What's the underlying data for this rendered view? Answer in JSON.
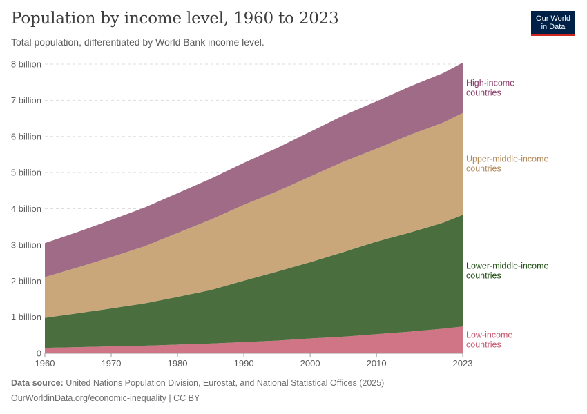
{
  "header": {
    "title": "Population by income level, 1960 to 2023",
    "subtitle": "Total population, differentiated by World Bank income level.",
    "logo_line1": "Our World",
    "logo_line2": "in Data"
  },
  "footer": {
    "source_label": "Data source:",
    "source_text": "United Nations Population Division, Eurostat, and National Statistical Offices (2025)",
    "url_text": "OurWorldinData.org/economic-inequality | CC BY"
  },
  "colors": {
    "low": "#d07585",
    "lower_middle": "#4a6e3d",
    "upper_middle": "#c9a77b",
    "high": "#9f6b87",
    "label_low": "#c6586f",
    "label_lower_middle": "#1f4d13",
    "label_upper_middle": "#b28a5a",
    "label_high": "#883b6a",
    "brand": "#002147",
    "brand_accent": "#ce261e"
  },
  "chart_data": {
    "type": "area",
    "stacked": true,
    "x": [
      1960,
      1965,
      1970,
      1975,
      1980,
      1985,
      1990,
      1995,
      2000,
      2005,
      2010,
      2015,
      2020,
      2023
    ],
    "x_ticks": [
      1960,
      1970,
      1980,
      1990,
      2000,
      2010,
      2023
    ],
    "y_ticks": [
      0,
      1,
      2,
      3,
      4,
      5,
      6,
      7,
      8
    ],
    "y_tick_labels": [
      "0",
      "1 billion",
      "2 billion",
      "3 billion",
      "4 billion",
      "5 billion",
      "6 billion",
      "7 billion",
      "8 billion"
    ],
    "ylim": [
      0,
      8
    ],
    "grid": true,
    "legend": "right-inline",
    "series": [
      {
        "name": "Low-income countries",
        "label_lines": [
          "Low-income",
          "countries"
        ],
        "color_key": "low",
        "label_color_key": "label_low",
        "values": [
          0.15,
          0.17,
          0.19,
          0.21,
          0.24,
          0.27,
          0.31,
          0.35,
          0.41,
          0.46,
          0.53,
          0.6,
          0.68,
          0.74
        ]
      },
      {
        "name": "Lower-middle-income countries",
        "label_lines": [
          "Lower-middle-income",
          "countries"
        ],
        "color_key": "lower_middle",
        "label_color_key": "label_lower_middle",
        "values": [
          0.83,
          0.94,
          1.05,
          1.17,
          1.32,
          1.48,
          1.7,
          1.91,
          2.11,
          2.34,
          2.56,
          2.74,
          2.93,
          3.09
        ]
      },
      {
        "name": "Upper-middle-income countries",
        "label_lines": [
          "Upper-middle-income",
          "countries"
        ],
        "color_key": "upper_middle",
        "label_color_key": "label_upper_middle",
        "values": [
          1.13,
          1.27,
          1.42,
          1.58,
          1.77,
          1.95,
          2.1,
          2.22,
          2.37,
          2.5,
          2.57,
          2.7,
          2.77,
          2.82
        ]
      },
      {
        "name": "High-income countries",
        "label_lines": [
          "High-income",
          "countries"
        ],
        "color_key": "high",
        "label_color_key": "label_high",
        "values": [
          0.94,
          0.98,
          1.03,
          1.07,
          1.1,
          1.13,
          1.16,
          1.2,
          1.24,
          1.28,
          1.31,
          1.34,
          1.37,
          1.39
        ]
      }
    ]
  }
}
